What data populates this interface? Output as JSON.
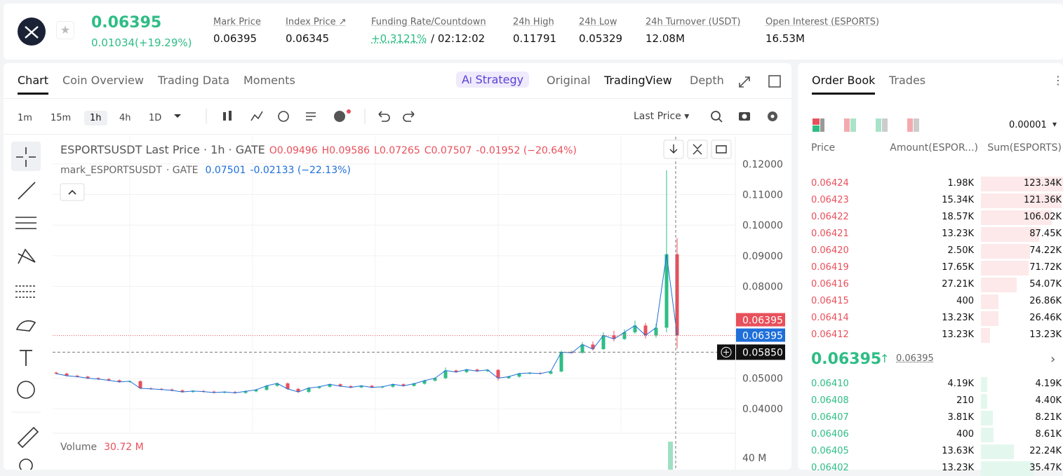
{
  "header": {
    "price": "0.06395",
    "change": "0.01034(+19.29%)",
    "stats": [
      {
        "label": "Mark Price",
        "value": "0.06395"
      },
      {
        "label": "Index Price ↗",
        "value": "0.06345"
      },
      {
        "label": "Funding Rate/Countdown",
        "value": "+0.3121%",
        "extra": "/ 02:12:02"
      },
      {
        "label": "24h High",
        "value": "0.11791"
      },
      {
        "label": "24h Low",
        "value": "0.05329"
      },
      {
        "label": "24h Turnover (USDT)",
        "value": "12.08M"
      },
      {
        "label": "Open Interest (ESPORTS)",
        "value": "16.53M"
      }
    ]
  },
  "chart_tabs": [
    "Chart",
    "Coin Overview",
    "Trading Data",
    "Moments"
  ],
  "view_tabs": {
    "strategy": "Strategy",
    "items": [
      "Original",
      "TradingView",
      "Depth"
    ]
  },
  "intervals": [
    "1m",
    "15m",
    "1h",
    "4h",
    "1D"
  ],
  "price_type": "Last Price",
  "chart": {
    "type": "candlestick",
    "title": "ESPORTSUSDT Last Price · 1h · GATE",
    "ohlc": {
      "open": "O0.09496",
      "high": "H0.09586",
      "low": "L0.07265",
      "close": "C0.07507",
      "change": "-0.01952 (−20.64%)"
    },
    "mark_line": {
      "name": "mark_ESPORTSUSDT",
      "source": "· GATE",
      "value": "0.07501",
      "change": "-0.02133 (−22.13%)"
    },
    "ylim": [
      0.0327,
      0.1289
    ],
    "yticks": [
      {
        "value": 0.12,
        "label": "0.12000"
      },
      {
        "value": 0.11,
        "label": "0.11000"
      },
      {
        "value": 0.1,
        "label": "0.10000"
      },
      {
        "value": 0.09,
        "label": "0.09000"
      },
      {
        "value": 0.08,
        "label": "0.08000"
      },
      {
        "value": 0.05,
        "label": "0.05000"
      },
      {
        "value": 0.04,
        "label": "0.04000"
      }
    ],
    "last_price": 0.06395,
    "mark_price": 0.06395,
    "crosshair": {
      "value": 0.0585,
      "label": "0.05850"
    },
    "candles": [
      [
        0.0518,
        0.0521,
        0.0512,
        0.0515
      ],
      [
        0.0515,
        0.0518,
        0.0505,
        0.0508
      ],
      [
        0.0508,
        0.0511,
        0.0502,
        0.0505
      ],
      [
        0.0505,
        0.0508,
        0.0497,
        0.05
      ],
      [
        0.05,
        0.0503,
        0.0494,
        0.0497
      ],
      [
        0.0497,
        0.05,
        0.049,
        0.0493
      ],
      [
        0.0493,
        0.0496,
        0.0485,
        0.0488
      ],
      [
        0.0488,
        0.0493,
        0.0485,
        0.049
      ],
      [
        0.049,
        0.0493,
        0.0464,
        0.0467
      ],
      [
        0.0467,
        0.047,
        0.0462,
        0.0465
      ],
      [
        0.0465,
        0.0468,
        0.046,
        0.0463
      ],
      [
        0.0463,
        0.0466,
        0.0457,
        0.046
      ],
      [
        0.046,
        0.0463,
        0.0452,
        0.0455
      ],
      [
        0.0455,
        0.0461,
        0.0452,
        0.0458
      ],
      [
        0.0458,
        0.0461,
        0.0453,
        0.0456
      ],
      [
        0.0456,
        0.0459,
        0.045,
        0.0453
      ],
      [
        0.0453,
        0.0458,
        0.045,
        0.0455
      ],
      [
        0.0455,
        0.0458,
        0.0449,
        0.0452
      ],
      [
        0.0452,
        0.046,
        0.0449,
        0.0457
      ],
      [
        0.0457,
        0.0465,
        0.0454,
        0.0462
      ],
      [
        0.0462,
        0.0478,
        0.0459,
        0.0475
      ],
      [
        0.0475,
        0.0486,
        0.0472,
        0.0483
      ],
      [
        0.0483,
        0.0486,
        0.0462,
        0.0465
      ],
      [
        0.0465,
        0.0468,
        0.0452,
        0.0455
      ],
      [
        0.0455,
        0.0471,
        0.0452,
        0.0468
      ],
      [
        0.0468,
        0.0475,
        0.0465,
        0.0472
      ],
      [
        0.0472,
        0.0483,
        0.0469,
        0.048
      ],
      [
        0.048,
        0.0483,
        0.0471,
        0.0474
      ],
      [
        0.0474,
        0.0477,
        0.0467,
        0.047
      ],
      [
        0.047,
        0.0478,
        0.0467,
        0.0475
      ],
      [
        0.0475,
        0.0478,
        0.0467,
        0.047
      ],
      [
        0.047,
        0.0475,
        0.0467,
        0.0472
      ],
      [
        0.0472,
        0.0483,
        0.0469,
        0.048
      ],
      [
        0.048,
        0.0483,
        0.0472,
        0.0475
      ],
      [
        0.0475,
        0.0485,
        0.0472,
        0.0482
      ],
      [
        0.0482,
        0.0495,
        0.0479,
        0.0492
      ],
      [
        0.0492,
        0.0503,
        0.0489,
        0.05
      ],
      [
        0.05,
        0.0535,
        0.0497,
        0.0525
      ],
      [
        0.0525,
        0.0528,
        0.0517,
        0.052
      ],
      [
        0.052,
        0.0531,
        0.0517,
        0.0528
      ],
      [
        0.0528,
        0.0531,
        0.052,
        0.0523
      ],
      [
        0.0523,
        0.053,
        0.052,
        0.0527
      ],
      [
        0.0527,
        0.053,
        0.0492,
        0.05
      ],
      [
        0.05,
        0.0508,
        0.0497,
        0.0505
      ],
      [
        0.0505,
        0.0518,
        0.0502,
        0.0515
      ],
      [
        0.0515,
        0.052,
        0.0512,
        0.0517
      ],
      [
        0.0517,
        0.052,
        0.0512,
        0.0515
      ],
      [
        0.0515,
        0.0525,
        0.0512,
        0.0522
      ],
      [
        0.0522,
        0.059,
        0.0519,
        0.0585
      ],
      [
        0.0585,
        0.059,
        0.058,
        0.0583
      ],
      [
        0.0583,
        0.0618,
        0.058,
        0.061
      ],
      [
        0.061,
        0.062,
        0.059,
        0.0595
      ],
      [
        0.0595,
        0.065,
        0.0592,
        0.064
      ],
      [
        0.064,
        0.0655,
        0.062,
        0.0628
      ],
      [
        0.0628,
        0.066,
        0.0625,
        0.065
      ],
      [
        0.065,
        0.0688,
        0.0645,
        0.0672
      ],
      [
        0.0672,
        0.068,
        0.063,
        0.064
      ],
      [
        0.064,
        0.0678,
        0.0632,
        0.0665
      ],
      [
        0.0665,
        0.1179,
        0.065,
        0.0905
      ],
      [
        0.0905,
        0.0958,
        0.0597,
        0.064
      ]
    ],
    "up_color": "#2ebd85",
    "down_color": "#e8505b",
    "line_color": "#1e6fd9",
    "volume": {
      "label": "Volume",
      "value": "30.72 M",
      "tick": "40 M"
    }
  },
  "order_book": {
    "tabs": [
      "Order Book",
      "Trades"
    ],
    "precision": "0.00001",
    "columns": [
      "Price",
      "Amount(ESPOR...)",
      "Sum(ESPORTS)"
    ],
    "asks": [
      {
        "price": "0.06424",
        "amount": "1.98K",
        "sum": {
          "value": 123340,
          "label": "123.34K"
        }
      },
      {
        "price": "0.06423",
        "amount": "15.34K",
        "sum": {
          "value": 121360,
          "label": "121.36K"
        }
      },
      {
        "price": "0.06422",
        "amount": "18.57K",
        "sum": {
          "value": 106020,
          "label": "106.02K"
        }
      },
      {
        "price": "0.06421",
        "amount": "13.23K",
        "sum": {
          "value": 87450,
          "label": "87.45K"
        }
      },
      {
        "price": "0.06420",
        "amount": "2.50K",
        "sum": {
          "value": 74220,
          "label": "74.22K"
        }
      },
      {
        "price": "0.06419",
        "amount": "17.65K",
        "sum": {
          "value": 71720,
          "label": "71.72K"
        }
      },
      {
        "price": "0.06416",
        "amount": "27.21K",
        "sum": {
          "value": 54070,
          "label": "54.07K"
        }
      },
      {
        "price": "0.06415",
        "amount": "400",
        "sum": {
          "value": 26860,
          "label": "26.86K"
        }
      },
      {
        "price": "0.06414",
        "amount": "13.23K",
        "sum": {
          "value": 26460,
          "label": "26.46K"
        }
      },
      {
        "price": "0.06412",
        "amount": "13.23K",
        "sum": {
          "value": 13230,
          "label": "13.23K"
        }
      }
    ],
    "mid": "0.06395",
    "mid_mark": "0.06395",
    "bids": [
      {
        "price": "0.06410",
        "amount": "4.19K",
        "sum": {
          "value": 4190,
          "label": "4.19K"
        }
      },
      {
        "price": "0.06408",
        "amount": "210",
        "sum": {
          "value": 4400,
          "label": "4.40K"
        }
      },
      {
        "price": "0.06407",
        "amount": "3.81K",
        "sum": {
          "value": 8210,
          "label": "8.21K"
        }
      },
      {
        "price": "0.06406",
        "amount": "400",
        "sum": {
          "value": 8610,
          "label": "8.61K"
        }
      },
      {
        "price": "0.06405",
        "amount": "13.63K",
        "sum": {
          "value": 22240,
          "label": "22.24K"
        }
      },
      {
        "price": "0.06402",
        "amount": "13.23K",
        "sum": {
          "value": 35470,
          "label": "35.47K"
        }
      }
    ]
  }
}
